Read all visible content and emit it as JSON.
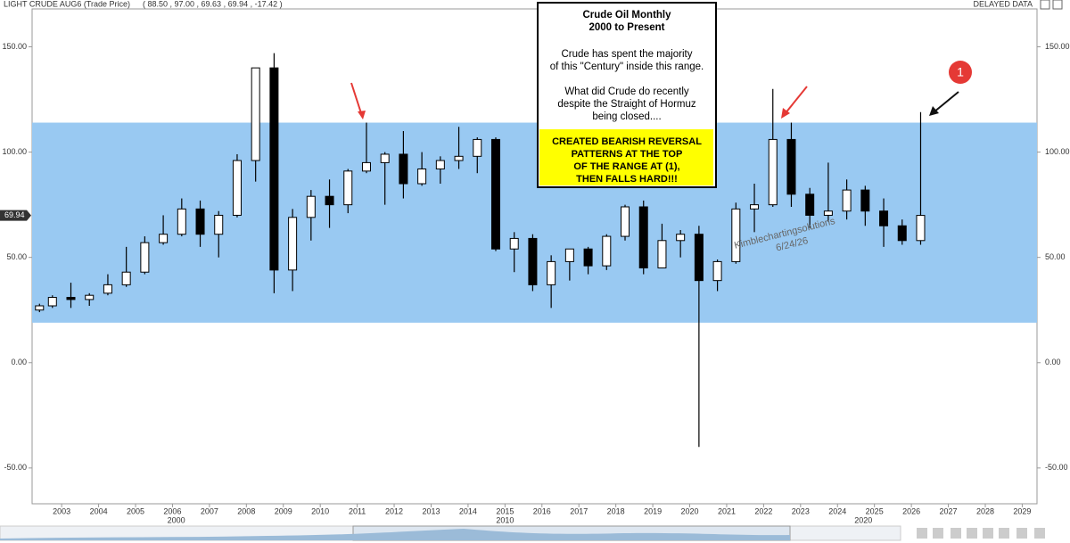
{
  "chart_data": {
    "type": "candlestick",
    "symbol": "LIGHT CRUDE AUG6 (Trade Price)",
    "quote": "( 88.50 , 97.00 , 69.63 , 69.94 , -17.42 )",
    "status": "DELAYED DATA",
    "last_price": 69.94,
    "up_color": "#ffffff",
    "down_color": "#000000",
    "range_band": [
      19,
      114
    ],
    "band_color": "#99c9f2",
    "xlim": [
      2002.2,
      2029.4
    ],
    "xticks": [
      2003,
      2004,
      2005,
      2006,
      2007,
      2008,
      2009,
      2010,
      2011,
      2012,
      2013,
      2014,
      2015,
      2016,
      2017,
      2018,
      2019,
      2020,
      2021,
      2022,
      2023,
      2024,
      2025,
      2026,
      2027,
      2028,
      2029
    ],
    "x2ticks": [
      {
        "value": 2006.1,
        "label": "2000"
      },
      {
        "value": 2015.0,
        "label": "2010"
      },
      {
        "value": 2024.7,
        "label": "2020"
      }
    ],
    "ylim": [
      -67,
      168
    ],
    "yticks": [
      {
        "value": 150,
        "label": "150.00"
      },
      {
        "value": 100,
        "label": "100.00"
      },
      {
        "value": 50,
        "label": "50.00"
      },
      {
        "value": 0,
        "label": "0.00"
      },
      {
        "value": -50,
        "label": "-50.00"
      }
    ],
    "x": [
      2002.4,
      2002.75,
      2003.25,
      2003.75,
      2004.25,
      2004.75,
      2005.25,
      2005.75,
      2006.25,
      2006.75,
      2007.25,
      2007.75,
      2008.25,
      2008.75,
      2009.25,
      2009.75,
      2010.25,
      2010.75,
      2011.25,
      2011.75,
      2012.25,
      2012.75,
      2013.25,
      2013.75,
      2014.25,
      2014.75,
      2015.25,
      2015.75,
      2016.25,
      2016.75,
      2017.25,
      2017.75,
      2018.25,
      2018.75,
      2019.25,
      2019.75,
      2020.25,
      2020.75,
      2021.25,
      2021.75,
      2022.25,
      2022.75,
      2023.25,
      2023.75,
      2024.25,
      2024.75,
      2025.25,
      2025.75,
      2026.25
    ],
    "open": [
      25,
      27,
      31,
      30,
      33,
      37,
      43,
      57,
      61,
      73,
      61,
      70,
      96,
      140,
      44,
      69,
      79,
      75,
      91,
      95,
      99,
      85,
      92,
      96,
      98,
      106,
      54,
      59,
      37,
      48,
      54,
      46,
      60,
      74,
      45,
      58,
      61,
      39,
      48,
      73,
      75,
      106,
      80,
      70,
      72,
      82,
      72,
      65,
      58
    ],
    "high": [
      28,
      32,
      38,
      33,
      42,
      55,
      60,
      70,
      78,
      77,
      72,
      99,
      140,
      147,
      73,
      82,
      87,
      92,
      114,
      100,
      110,
      100,
      98,
      112,
      107,
      107,
      62,
      61,
      51,
      54,
      55,
      61,
      75,
      77,
      66,
      63,
      65,
      49,
      76,
      85,
      130,
      114,
      83,
      95,
      87,
      84,
      78,
      68,
      119
    ],
    "low": [
      24,
      26,
      26,
      27,
      32,
      36,
      42,
      56,
      60,
      55,
      50,
      69,
      86,
      33,
      34,
      58,
      64,
      71,
      90,
      75,
      78,
      84,
      85,
      92,
      90,
      53,
      43,
      34,
      26,
      39,
      42,
      44,
      58,
      42,
      45,
      50,
      -40,
      34,
      47,
      62,
      74,
      74,
      64,
      67,
      68,
      65,
      55,
      56,
      56
    ],
    "close": [
      27,
      31,
      30,
      32,
      37,
      43,
      57,
      61,
      73,
      61,
      70,
      96,
      140,
      44,
      69,
      79,
      75,
      91,
      95,
      99,
      85,
      92,
      96,
      98,
      106,
      54,
      59,
      37,
      48,
      54,
      46,
      60,
      74,
      45,
      58,
      61,
      39,
      48,
      73,
      75,
      106,
      80,
      70,
      72,
      82,
      72,
      65,
      58,
      69.94
    ],
    "note": {
      "title": "Crude Oil Monthly",
      "subtitle": "2000 to Present",
      "para1": [
        "Crude has spent the majority",
        "of this \"Century\" inside this range."
      ],
      "para2": [
        "What did Crude do recently",
        "despite the Straight of Hormuz",
        "being closed...."
      ],
      "highlight": [
        "CREATED BEARISH REVERSAL",
        "PATTERNS AT THE TOP",
        "OF THE RANGE AT (1),",
        "THEN FALLS HARD!!!"
      ]
    },
    "marker": "1",
    "watermark": [
      "Kimblechartingsolutions",
      "6/24/26"
    ]
  }
}
